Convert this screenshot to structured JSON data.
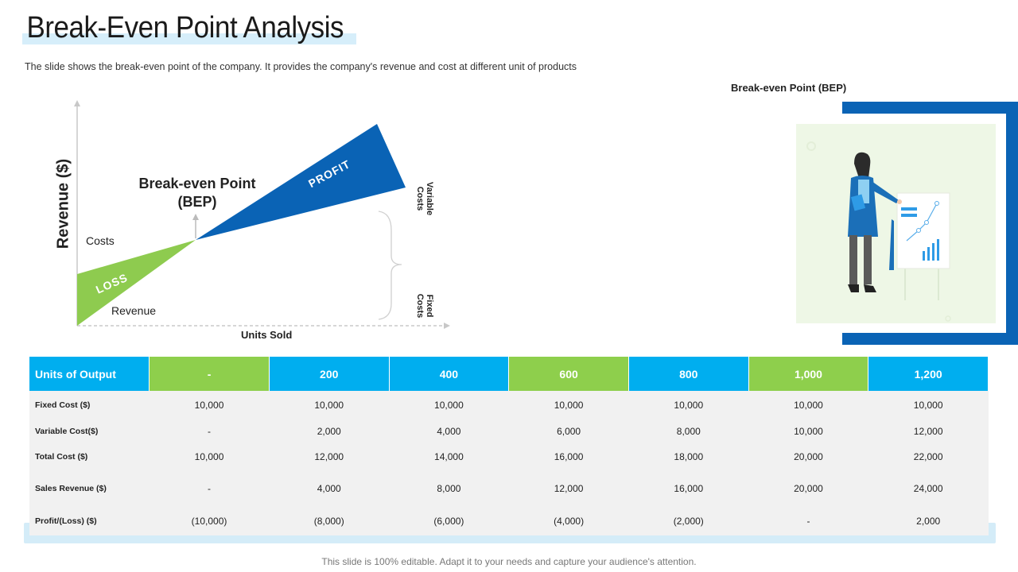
{
  "page": {
    "title": "Break-Even Point Analysis",
    "subtitle": "The slide shows the break-even  point of the company. It provides  the company's revenue  and cost at different  unit of products",
    "bep_caption": "Break-even Point (BEP)",
    "footer": "This slide is 100% editable. Adapt it to your needs and capture your audience's attention."
  },
  "chart_data": {
    "type": "area",
    "title": "Break-even Point (BEP)",
    "xlabel": "Units  Sold",
    "ylabel": "Revenue ($)",
    "series": [
      {
        "name": "Costs",
        "values": [
          0.3,
          0.55,
          0.9
        ]
      },
      {
        "name": "Revenue",
        "values": [
          0.0,
          0.55,
          1.3
        ]
      }
    ],
    "regions": {
      "profit": "PROFIT",
      "loss": "LOSS"
    },
    "brace_labels": {
      "variable": "Variable Costs",
      "fixed": "Fixed Costs"
    },
    "bep_label": "Break-even Point (BEP)",
    "bep_label_line1": "Break-even Point",
    "bep_label_line2": "(BEP)",
    "costs_label": "Costs",
    "revenue_label": "Revenue",
    "colors": {
      "profit": "#0a63b5",
      "loss": "#8ecb4f",
      "axis": "#c8c8c8"
    }
  },
  "table": {
    "header_label": "Units of Output",
    "columns": [
      "-",
      "200",
      "400",
      "600",
      "800",
      "1,000",
      "1,200"
    ],
    "header_colors": [
      "#00aeef",
      "#8ecf4c",
      "#00aeef",
      "#00aeef",
      "#8ecf4c",
      "#00aeef",
      "#8ecf4c",
      "#00aeef"
    ],
    "rows": [
      {
        "label": "Fixed Cost ($)",
        "values": [
          "10,000",
          "10,000",
          "10,000",
          "10,000",
          "10,000",
          "10,000",
          "10,000"
        ]
      },
      {
        "label": "Variable Cost($)",
        "values": [
          "-",
          "2,000",
          "4,000",
          "6,000",
          "8,000",
          "10,000",
          "12,000"
        ]
      },
      {
        "label": "Total Cost ($)",
        "values": [
          "10,000",
          "12,000",
          "14,000",
          "16,000",
          "18,000",
          "20,000",
          "22,000"
        ]
      },
      {
        "label": "Sales Revenue ($)",
        "values": [
          "-",
          "4,000",
          "8,000",
          "12,000",
          "16,000",
          "20,000",
          "24,000"
        ]
      },
      {
        "label": "Profit/(Loss) ($)",
        "values": [
          "(10,000)",
          "(8,000)",
          "(6,000)",
          "(4,000)",
          "(2,000)",
          "-",
          "2,000"
        ]
      }
    ]
  },
  "colors": {
    "brand_blue": "#0a63b5",
    "cyan": "#00aeef",
    "green": "#8ecf4c",
    "illus_bg": "#eef7e6"
  }
}
